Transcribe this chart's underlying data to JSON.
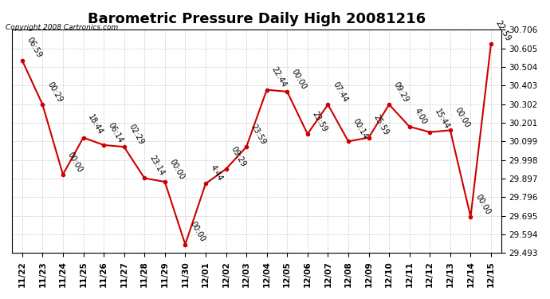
{
  "title": "Barometric Pressure Daily High 20081216",
  "copyright": "Copyright 2008 Cartronics.com",
  "x_labels": [
    "11/22",
    "11/23",
    "11/24",
    "11/25",
    "11/26",
    "11/27",
    "11/28",
    "11/29",
    "11/30",
    "12/01",
    "12/02",
    "12/03",
    "12/04",
    "12/05",
    "12/06",
    "12/07",
    "12/08",
    "12/09",
    "12/10",
    "12/11",
    "12/12",
    "12/13",
    "12/14",
    "12/15"
  ],
  "y_values": [
    30.54,
    30.3,
    29.92,
    30.12,
    30.08,
    30.07,
    29.9,
    29.88,
    29.54,
    29.87,
    29.95,
    30.07,
    30.38,
    30.37,
    30.14,
    30.3,
    30.1,
    30.12,
    30.3,
    30.18,
    30.15,
    30.16,
    29.69,
    30.63
  ],
  "time_labels": [
    "06:59",
    "00:29",
    "00:00",
    "18:44",
    "06:14",
    "02:29",
    "23:14",
    "00:00",
    "00:00",
    "4:44",
    "09:29",
    "23:59",
    "22:44",
    "00:00",
    "23:59",
    "07:44",
    "00:14",
    "25:59",
    "09:29",
    "4:00",
    "15:44",
    "00:00",
    "00:00",
    "22:59"
  ],
  "ylim_min": 29.493,
  "ylim_max": 30.706,
  "y_ticks": [
    29.493,
    29.594,
    29.695,
    29.796,
    29.897,
    29.998,
    30.099,
    30.201,
    30.302,
    30.403,
    30.504,
    30.605,
    30.706
  ],
  "line_color": "#cc0000",
  "marker_color": "#cc0000",
  "bg_color": "#ffffff",
  "grid_color": "#cccccc",
  "title_fontsize": 13,
  "label_fontsize": 7,
  "tick_fontsize": 7.5,
  "copyright_fontsize": 6.5
}
